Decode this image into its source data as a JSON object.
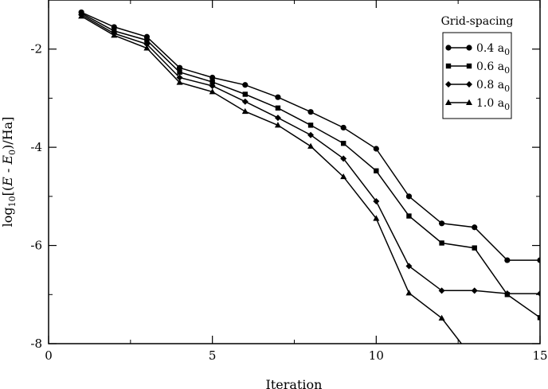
{
  "chart_data": {
    "type": "line",
    "xlabel": "Iteration",
    "ylabel_parts": {
      "base": "log",
      "base_sub": "10",
      "open": "[(",
      "e": "E",
      "minus": " - ",
      "e0": "E",
      "e0_sub": "0",
      "close": ")/Ha]"
    },
    "xlim": [
      0,
      15
    ],
    "ylim": [
      -8,
      -1
    ],
    "xticks": [
      0,
      5,
      10,
      15
    ],
    "xtick_labels": [
      "0",
      "5",
      "10",
      "15"
    ],
    "yticks": [
      -8,
      -6,
      -4,
      -2
    ],
    "ytick_labels": [
      "-8",
      "-6",
      "-4",
      "-2"
    ],
    "grid": false,
    "legend_title": "Grid-spacing",
    "legend_position": "top-right",
    "series": [
      {
        "name": "0.4 a",
        "name_sub": "0",
        "marker": "circle",
        "x": [
          1,
          2,
          3,
          4,
          5,
          6,
          7,
          8,
          9,
          10,
          11,
          12,
          13,
          14,
          15
        ],
        "y": [
          -1.25,
          -1.55,
          -1.75,
          -2.38,
          -2.58,
          -2.73,
          -2.98,
          -3.28,
          -3.6,
          -4.03,
          -5.0,
          -5.55,
          -5.63,
          -6.3,
          -6.3
        ]
      },
      {
        "name": "0.6 a",
        "name_sub": "0",
        "marker": "square",
        "x": [
          1,
          2,
          3,
          4,
          5,
          6,
          7,
          8,
          9,
          10,
          11,
          12,
          13,
          14,
          15
        ],
        "y": [
          -1.27,
          -1.63,
          -1.82,
          -2.47,
          -2.67,
          -2.92,
          -3.2,
          -3.55,
          -3.92,
          -4.48,
          -5.4,
          -5.95,
          -6.05,
          -7.0,
          -7.47
        ]
      },
      {
        "name": "0.8 a",
        "name_sub": "0",
        "marker": "diamond",
        "x": [
          1,
          2,
          3,
          4,
          5,
          6,
          7,
          8,
          9,
          10,
          11,
          12,
          13,
          14,
          15
        ],
        "y": [
          -1.3,
          -1.68,
          -1.9,
          -2.58,
          -2.75,
          -3.07,
          -3.4,
          -3.75,
          -4.23,
          -5.1,
          -6.42,
          -6.92,
          -6.92,
          -6.98,
          -6.98
        ]
      },
      {
        "name": "1.0 a",
        "name_sub": "0",
        "marker": "triangle",
        "x": [
          1,
          2,
          3,
          4,
          5,
          6,
          7,
          8,
          9,
          10,
          11,
          12,
          12.6
        ],
        "y": [
          -1.33,
          -1.72,
          -1.98,
          -2.68,
          -2.87,
          -3.27,
          -3.55,
          -3.98,
          -4.6,
          -5.45,
          -6.97,
          -7.48,
          -8.0
        ]
      }
    ]
  }
}
